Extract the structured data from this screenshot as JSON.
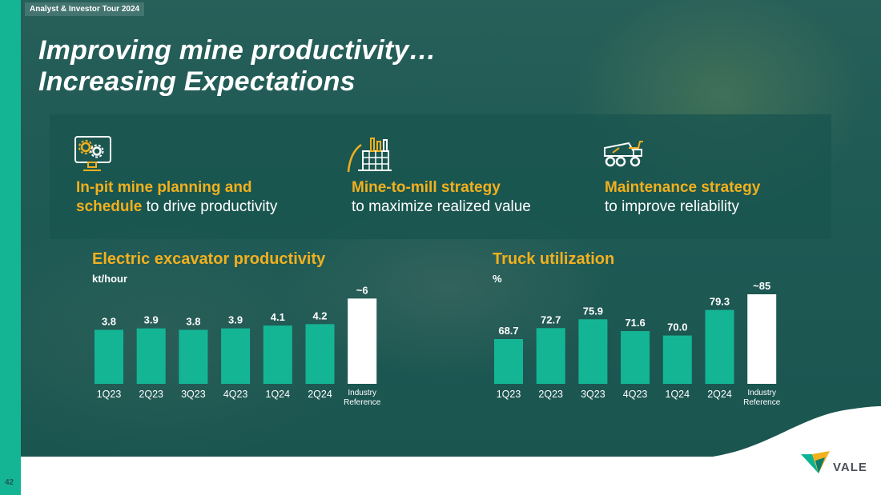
{
  "header": {
    "tour_tag": "Analyst & Investor Tour 2024",
    "title_line1": "Improving mine productivity…",
    "title_line2": "Increasing  Expectations"
  },
  "strategies": [
    {
      "icon": "planning-monitor-gears-icon",
      "highlight_1": "In-pit mine planning and",
      "highlight_2": "schedule",
      "rest": " to drive productivity"
    },
    {
      "icon": "mill-plant-icon",
      "highlight": "Mine-to-mill strategy",
      "rest": "to maximize realized value"
    },
    {
      "icon": "haul-truck-icon",
      "highlight": "Maintenance strategy",
      "rest": "to improve reliability"
    }
  ],
  "colors": {
    "accent": "#f2b01e",
    "bar": "#14b595",
    "reference_bar": "#ffffff",
    "background": "#1f5a55"
  },
  "page_number": "42",
  "brand": "VALE",
  "chart_data": [
    {
      "type": "bar",
      "title": "Electric excavator productivity",
      "ylabel": "kt/hour",
      "categories": [
        "1Q23",
        "2Q23",
        "3Q23",
        "4Q23",
        "1Q24",
        "2Q24",
        "Industry Reference"
      ],
      "values": [
        3.8,
        3.9,
        3.8,
        3.9,
        4.1,
        4.2,
        6
      ],
      "labels": [
        "3.8",
        "3.9",
        "3.8",
        "3.9",
        "4.1",
        "4.2",
        "~6"
      ],
      "ylim": [
        0,
        6.3
      ],
      "grid": false
    },
    {
      "type": "bar",
      "title": "Truck utilization",
      "ylabel": "%",
      "categories": [
        "1Q23",
        "2Q23",
        "3Q23",
        "4Q23",
        "1Q24",
        "2Q24",
        "Industry Reference"
      ],
      "values": [
        68.7,
        72.7,
        75.9,
        71.6,
        70.0,
        79.3,
        85
      ],
      "labels": [
        "68.7",
        "72.7",
        "75.9",
        "71.6",
        "70.0",
        "79.3",
        "~85"
      ],
      "ylim": [
        52.4,
        85
      ],
      "grid": false
    }
  ]
}
